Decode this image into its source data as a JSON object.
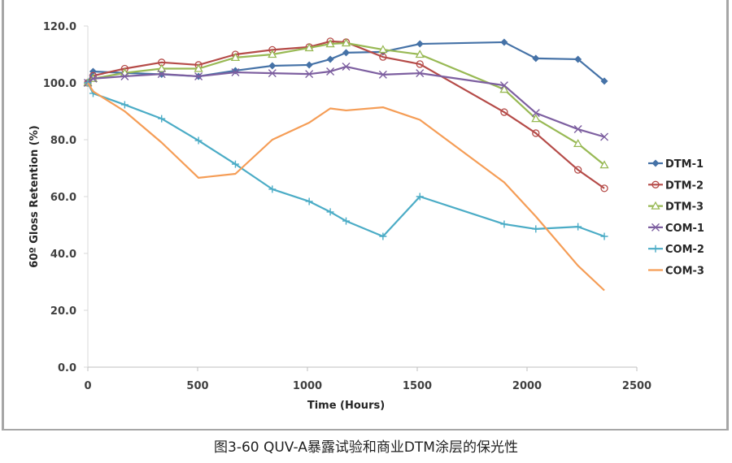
{
  "chart_data": {
    "type": "line",
    "title": "",
    "xlabel": "Time (Hours)",
    "ylabel": "60º Gloss Retention (%)",
    "xlim": [
      0,
      2500
    ],
    "ylim": [
      0,
      120
    ],
    "xticks": [
      "0",
      "500",
      "1000",
      "1500",
      "2000",
      "2500"
    ],
    "yticks": [
      "0.0",
      "20.0",
      "40.0",
      "60.0",
      "80.0",
      "100.0",
      "120.0"
    ],
    "grid": false,
    "legend": "right",
    "x": [
      0,
      24,
      168,
      336,
      504,
      672,
      840,
      1008,
      1104,
      1176,
      1344,
      1512,
      1896,
      2040,
      2232,
      2352
    ],
    "series": [
      {
        "name": "DTM-1",
        "color": "#4572a7",
        "marker": "diamond",
        "values": [
          100,
          104,
          103.5,
          103,
          102.3,
          104.3,
          106,
          106.3,
          108.3,
          110.6,
          110.9,
          113.7,
          114.3,
          108.6,
          108.3,
          100.6
        ]
      },
      {
        "name": "DTM-2",
        "color": "#b54b48",
        "marker": "circle",
        "values": [
          100,
          102.5,
          105,
          107.2,
          106.3,
          110,
          111.6,
          112.6,
          114.6,
          114.3,
          109.1,
          106.6,
          89.7,
          82.3,
          69.4,
          62.9
        ]
      },
      {
        "name": "DTM-3",
        "color": "#98b954",
        "marker": "triangle",
        "values": [
          100,
          101.5,
          103.5,
          105,
          105,
          108.9,
          110,
          112.3,
          113.7,
          114,
          111.7,
          110,
          97.7,
          87.4,
          78.6,
          71.1
        ]
      },
      {
        "name": "COM-1",
        "color": "#7d5fa0",
        "marker": "x",
        "values": [
          100,
          101.5,
          102.3,
          103.1,
          102.3,
          103.7,
          103.4,
          103.1,
          104,
          105.7,
          102.9,
          103.4,
          99.1,
          89.4,
          83.7,
          81
        ]
      },
      {
        "name": "COM-2",
        "color": "#4bacc6",
        "marker": "plus",
        "values": [
          100,
          96.3,
          92.3,
          87.4,
          79.7,
          71.4,
          62.6,
          58.3,
          54.6,
          51.4,
          46,
          60,
          50.3,
          48.6,
          49.4,
          46
        ]
      },
      {
        "name": "COM-3",
        "color": "#f59d56",
        "marker": "none",
        "values": [
          100,
          97,
          90,
          79,
          66.6,
          68,
          80,
          86,
          91,
          90.3,
          91.4,
          87,
          65,
          53,
          35.7,
          27
        ]
      }
    ]
  },
  "caption": "图3-60 QUV-A暴露试验和商业DTM涂层的保光性"
}
